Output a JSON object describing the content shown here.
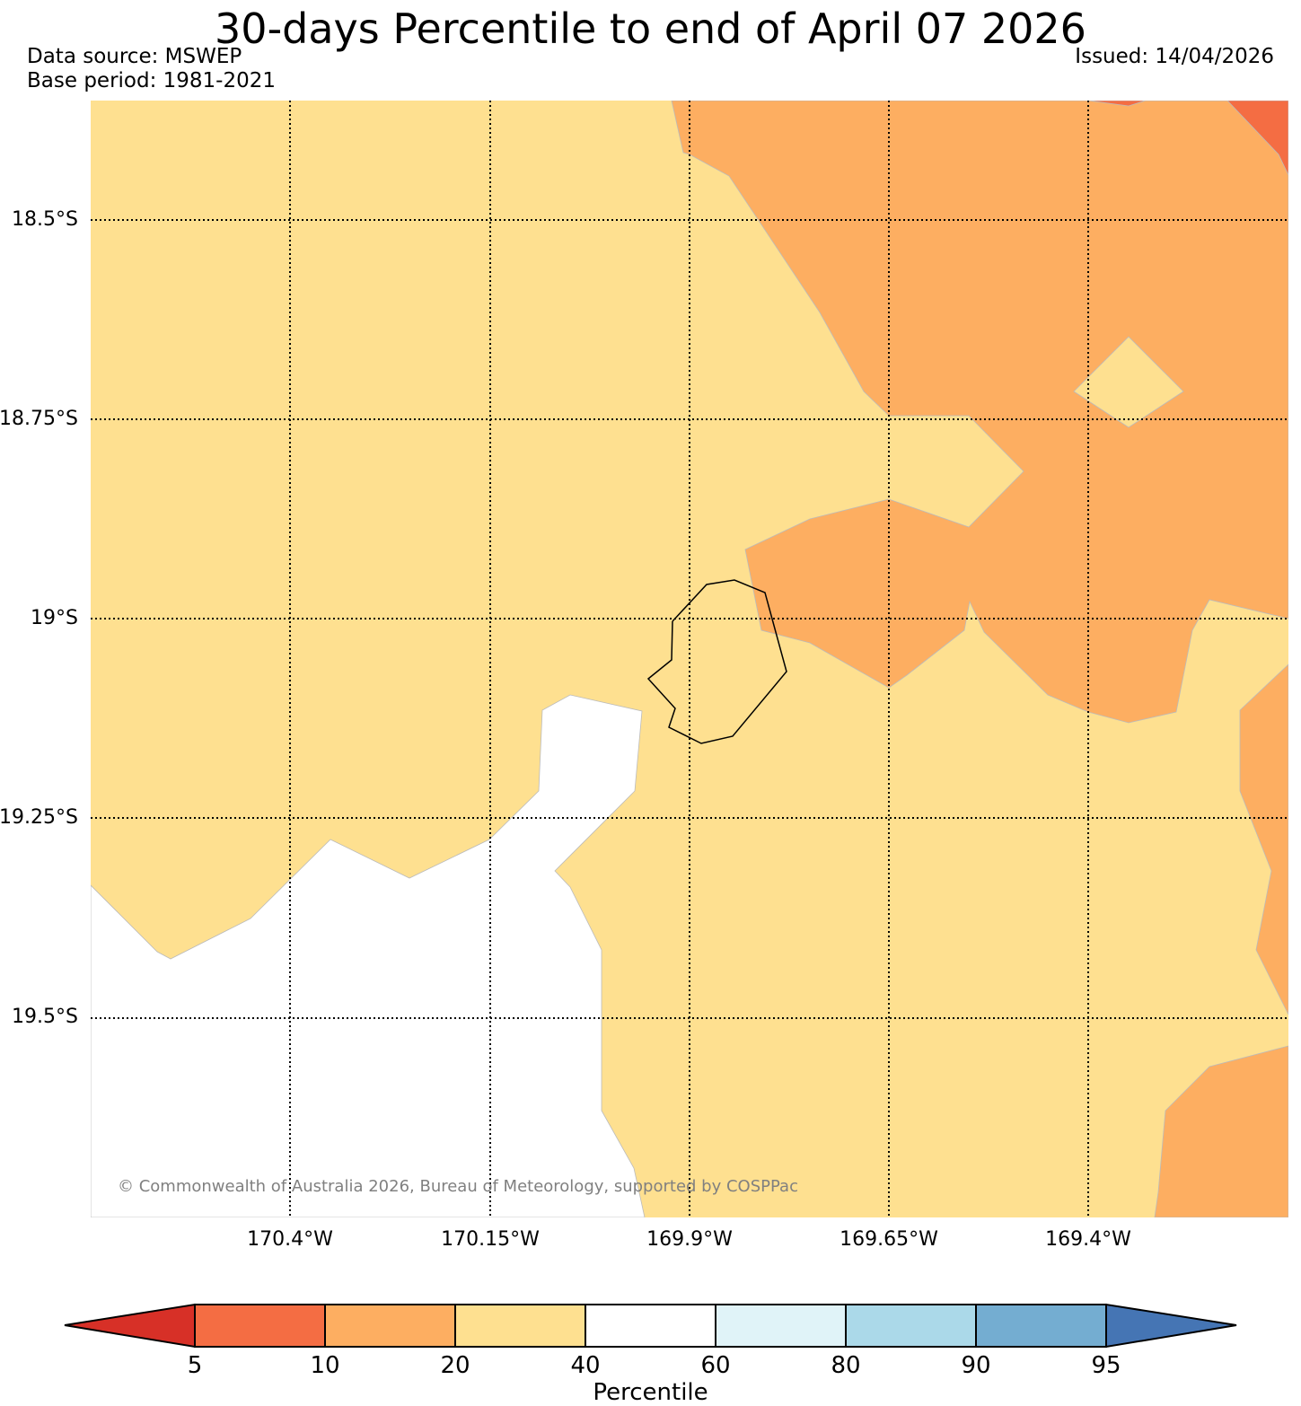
{
  "title": "30-days Percentile to end of April 07 2026",
  "data_source": "Data source: MSWEP",
  "base_period": "Base period: 1981-2021",
  "issued": "Issued: 14/04/2026",
  "copyright": "© Commonwealth of Australia 2026, Bureau of Meteorology, supported by COSPPac",
  "map": {
    "lat_labels": [
      "18.5°S",
      "18.75°S",
      "19°S",
      "19.25°S",
      "19.5°S"
    ],
    "lon_labels": [
      "170.4°W",
      "170.15°W",
      "169.9°W",
      "169.65°W",
      "169.4°W"
    ],
    "colors": {
      "below_5": "#d73027",
      "p5_10": "#f46d43",
      "p10_20": "#fdae61",
      "p20_40": "#fee090",
      "p40_60": "#ffffff",
      "p60_80": "#e0f3f8",
      "p80_90": "#abd9e9",
      "p90_95": "#74add1",
      "above_95": "#4575b4"
    }
  },
  "colorbar": {
    "label": "Percentile",
    "ticks": [
      "5",
      "10",
      "20",
      "40",
      "60",
      "80",
      "90",
      "95"
    ]
  }
}
